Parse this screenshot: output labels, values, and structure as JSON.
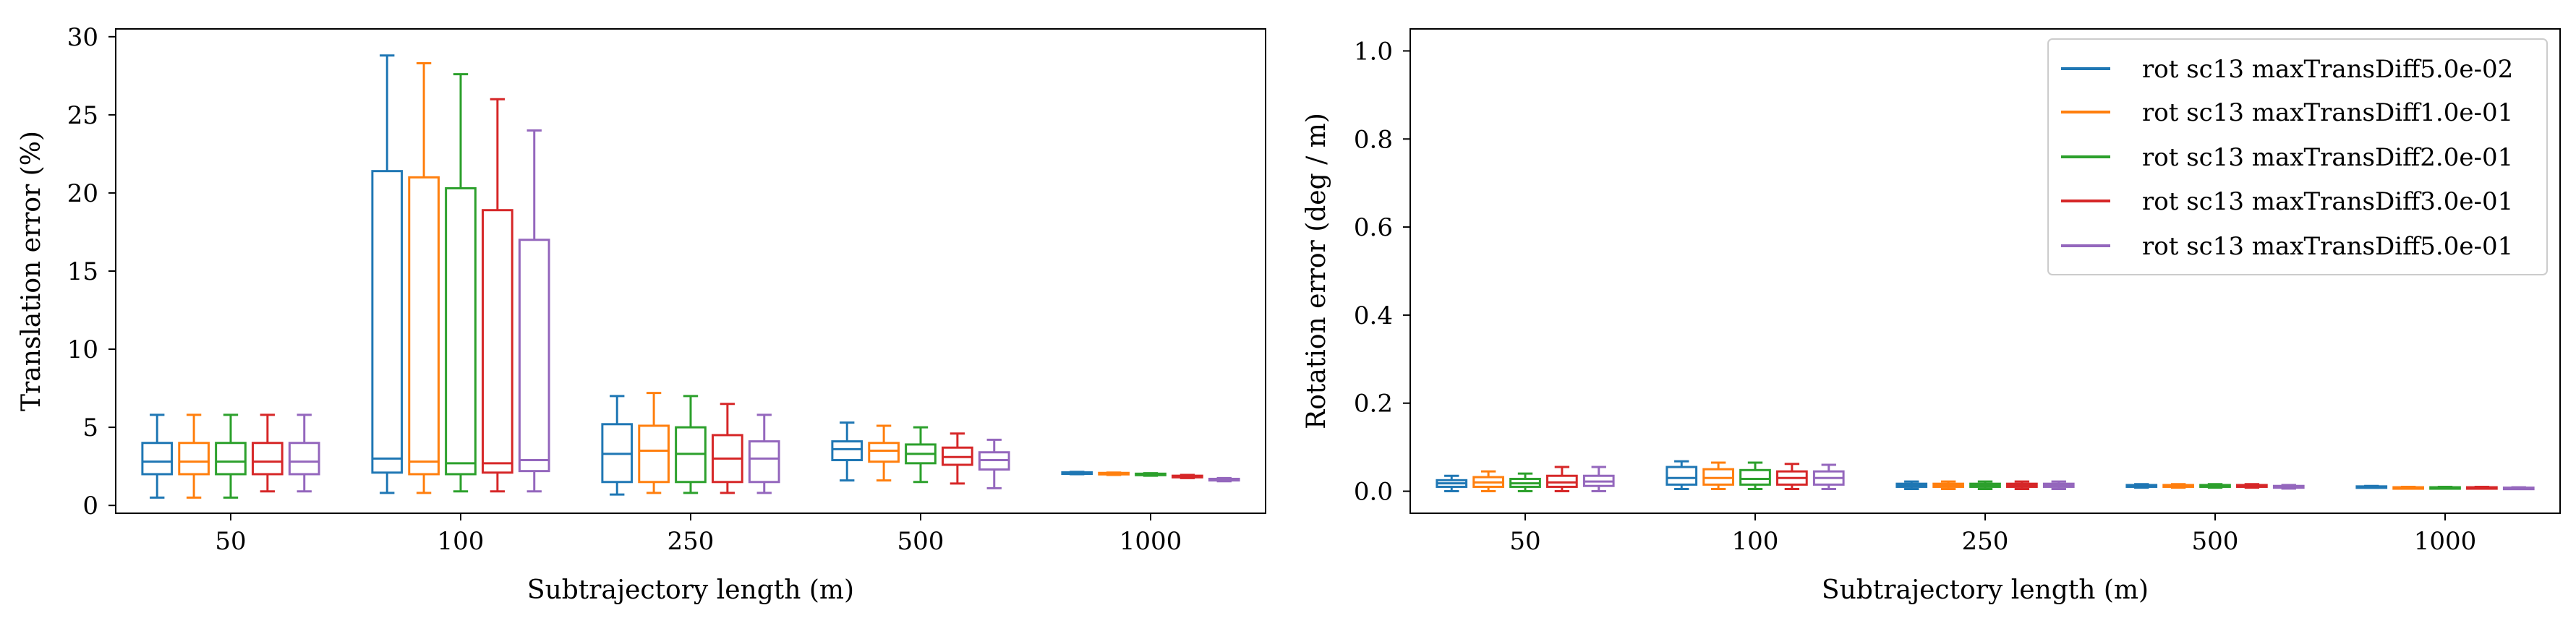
{
  "chart_data": [
    {
      "type": "box",
      "title": "",
      "xlabel": "Subtrajectory length (m)",
      "ylabel": "Translation error (%)",
      "categories": [
        "50",
        "100",
        "250",
        "500",
        "1000"
      ],
      "ylim": [
        -0.5,
        30.5
      ],
      "yticks": [
        0,
        5,
        10,
        15,
        20,
        25,
        30
      ],
      "grid": false,
      "series": [
        {
          "name": "rot sc13 maxTransDiff5.0e-02",
          "color": "#1f77b4",
          "boxes": [
            {
              "whislo": 0.5,
              "q1": 2.0,
              "med": 2.8,
              "q3": 4.0,
              "whishi": 5.8
            },
            {
              "whislo": 0.8,
              "q1": 2.1,
              "med": 3.0,
              "q3": 21.4,
              "whishi": 28.8
            },
            {
              "whislo": 0.7,
              "q1": 1.5,
              "med": 3.3,
              "q3": 5.2,
              "whishi": 7.0
            },
            {
              "whislo": 1.6,
              "q1": 2.9,
              "med": 3.6,
              "q3": 4.1,
              "whishi": 5.3
            },
            {
              "whislo": 2.0,
              "q1": 2.02,
              "med": 2.05,
              "q3": 2.12,
              "whishi": 2.15
            }
          ]
        },
        {
          "name": "rot sc13 maxTransDiff1.0e-01",
          "color": "#ff7f0e",
          "boxes": [
            {
              "whislo": 0.5,
              "q1": 2.0,
              "med": 2.8,
              "q3": 4.0,
              "whishi": 5.8
            },
            {
              "whislo": 0.8,
              "q1": 2.0,
              "med": 2.8,
              "q3": 21.0,
              "whishi": 28.3
            },
            {
              "whislo": 0.8,
              "q1": 1.5,
              "med": 3.5,
              "q3": 5.1,
              "whishi": 7.2
            },
            {
              "whislo": 1.6,
              "q1": 2.8,
              "med": 3.5,
              "q3": 4.0,
              "whishi": 5.1
            },
            {
              "whislo": 1.95,
              "q1": 2.0,
              "med": 2.02,
              "q3": 2.08,
              "whishi": 2.1
            }
          ]
        },
        {
          "name": "rot sc13 maxTransDiff2.0e-01",
          "color": "#2ca02c",
          "boxes": [
            {
              "whislo": 0.5,
              "q1": 2.0,
              "med": 2.8,
              "q3": 4.0,
              "whishi": 5.8
            },
            {
              "whislo": 0.9,
              "q1": 2.0,
              "med": 2.7,
              "q3": 20.3,
              "whishi": 27.6
            },
            {
              "whislo": 0.8,
              "q1": 1.5,
              "med": 3.3,
              "q3": 5.0,
              "whishi": 7.0
            },
            {
              "whislo": 1.5,
              "q1": 2.7,
              "med": 3.3,
              "q3": 3.9,
              "whishi": 5.0
            },
            {
              "whislo": 1.9,
              "q1": 1.95,
              "med": 1.98,
              "q3": 2.03,
              "whishi": 2.06
            }
          ]
        },
        {
          "name": "rot sc13 maxTransDiff3.0e-01",
          "color": "#d62728",
          "boxes": [
            {
              "whislo": 0.9,
              "q1": 2.0,
              "med": 2.8,
              "q3": 4.0,
              "whishi": 5.8
            },
            {
              "whislo": 0.9,
              "q1": 2.1,
              "med": 2.7,
              "q3": 18.9,
              "whishi": 26.0
            },
            {
              "whislo": 0.8,
              "q1": 1.5,
              "med": 3.0,
              "q3": 4.5,
              "whishi": 6.5
            },
            {
              "whislo": 1.4,
              "q1": 2.6,
              "med": 3.1,
              "q3": 3.7,
              "whishi": 4.6
            },
            {
              "whislo": 1.75,
              "q1": 1.8,
              "med": 1.85,
              "q3": 1.9,
              "whishi": 1.95
            }
          ]
        },
        {
          "name": "rot sc13 maxTransDiff5.0e-01",
          "color": "#9467bd",
          "boxes": [
            {
              "whislo": 0.9,
              "q1": 2.0,
              "med": 2.8,
              "q3": 4.0,
              "whishi": 5.8
            },
            {
              "whislo": 0.9,
              "q1": 2.2,
              "med": 2.9,
              "q3": 17.0,
              "whishi": 24.0
            },
            {
              "whislo": 0.8,
              "q1": 1.5,
              "med": 3.0,
              "q3": 4.1,
              "whishi": 5.8
            },
            {
              "whislo": 1.1,
              "q1": 2.3,
              "med": 2.9,
              "q3": 3.4,
              "whishi": 4.2
            },
            {
              "whislo": 1.55,
              "q1": 1.6,
              "med": 1.65,
              "q3": 1.7,
              "whishi": 1.75
            }
          ]
        }
      ]
    },
    {
      "type": "box",
      "title": "",
      "xlabel": "Subtrajectory length (m)",
      "ylabel": "Rotation error (deg / m)",
      "categories": [
        "50",
        "100",
        "250",
        "500",
        "1000"
      ],
      "ylim": [
        -0.05,
        1.05
      ],
      "yticks": [
        "0.0",
        "0.2",
        "0.4",
        "0.6",
        "0.8",
        "1.0"
      ],
      "grid": false,
      "legend": "top-right",
      "series": [
        {
          "name": "rot sc13 maxTransDiff5.0e-02",
          "color": "#1f77b4",
          "boxes": [
            {
              "whislo": 0.0,
              "q1": 0.01,
              "med": 0.018,
              "q3": 0.025,
              "whishi": 0.035
            },
            {
              "whislo": 0.005,
              "q1": 0.015,
              "med": 0.03,
              "q3": 0.055,
              "whishi": 0.068
            },
            {
              "whislo": 0.005,
              "q1": 0.01,
              "med": 0.013,
              "q3": 0.017,
              "whishi": 0.022
            },
            {
              "whislo": 0.008,
              "q1": 0.01,
              "med": 0.012,
              "q3": 0.014,
              "whishi": 0.016
            },
            {
              "whislo": 0.008,
              "q1": 0.009,
              "med": 0.01,
              "q3": 0.011,
              "whishi": 0.012
            }
          ]
        },
        {
          "name": "rot sc13 maxTransDiff1.0e-01",
          "color": "#ff7f0e",
          "boxes": [
            {
              "whislo": 0.0,
              "q1": 0.01,
              "med": 0.02,
              "q3": 0.032,
              "whishi": 0.045
            },
            {
              "whislo": 0.005,
              "q1": 0.015,
              "med": 0.03,
              "q3": 0.05,
              "whishi": 0.065
            },
            {
              "whislo": 0.005,
              "q1": 0.01,
              "med": 0.013,
              "q3": 0.017,
              "whishi": 0.022
            },
            {
              "whislo": 0.008,
              "q1": 0.01,
              "med": 0.012,
              "q3": 0.014,
              "whishi": 0.016
            },
            {
              "whislo": 0.006,
              "q1": 0.007,
              "med": 0.008,
              "q3": 0.009,
              "whishi": 0.01
            }
          ]
        },
        {
          "name": "rot sc13 maxTransDiff2.0e-01",
          "color": "#2ca02c",
          "boxes": [
            {
              "whislo": 0.0,
              "q1": 0.01,
              "med": 0.018,
              "q3": 0.028,
              "whishi": 0.04
            },
            {
              "whislo": 0.005,
              "q1": 0.015,
              "med": 0.028,
              "q3": 0.048,
              "whishi": 0.065
            },
            {
              "whislo": 0.005,
              "q1": 0.01,
              "med": 0.013,
              "q3": 0.017,
              "whishi": 0.022
            },
            {
              "whislo": 0.008,
              "q1": 0.01,
              "med": 0.012,
              "q3": 0.014,
              "whishi": 0.016
            },
            {
              "whislo": 0.006,
              "q1": 0.007,
              "med": 0.008,
              "q3": 0.009,
              "whishi": 0.01
            }
          ]
        },
        {
          "name": "rot sc13 maxTransDiff3.0e-01",
          "color": "#d62728",
          "boxes": [
            {
              "whislo": 0.0,
              "q1": 0.01,
              "med": 0.02,
              "q3": 0.035,
              "whishi": 0.055
            },
            {
              "whislo": 0.005,
              "q1": 0.015,
              "med": 0.03,
              "q3": 0.045,
              "whishi": 0.062
            },
            {
              "whislo": 0.005,
              "q1": 0.01,
              "med": 0.013,
              "q3": 0.017,
              "whishi": 0.022
            },
            {
              "whislo": 0.008,
              "q1": 0.01,
              "med": 0.012,
              "q3": 0.014,
              "whishi": 0.016
            },
            {
              "whislo": 0.006,
              "q1": 0.007,
              "med": 0.008,
              "q3": 0.009,
              "whishi": 0.01
            }
          ]
        },
        {
          "name": "rot sc13 maxTransDiff5.0e-01",
          "color": "#9467bd",
          "boxes": [
            {
              "whislo": 0.0,
              "q1": 0.012,
              "med": 0.022,
              "q3": 0.035,
              "whishi": 0.055
            },
            {
              "whislo": 0.005,
              "q1": 0.015,
              "med": 0.03,
              "q3": 0.045,
              "whishi": 0.06
            },
            {
              "whislo": 0.005,
              "q1": 0.01,
              "med": 0.013,
              "q3": 0.017,
              "whishi": 0.022
            },
            {
              "whislo": 0.006,
              "q1": 0.008,
              "med": 0.01,
              "q3": 0.012,
              "whishi": 0.014
            },
            {
              "whislo": 0.005,
              "q1": 0.006,
              "med": 0.007,
              "q3": 0.008,
              "whishi": 0.009
            }
          ]
        }
      ]
    }
  ]
}
